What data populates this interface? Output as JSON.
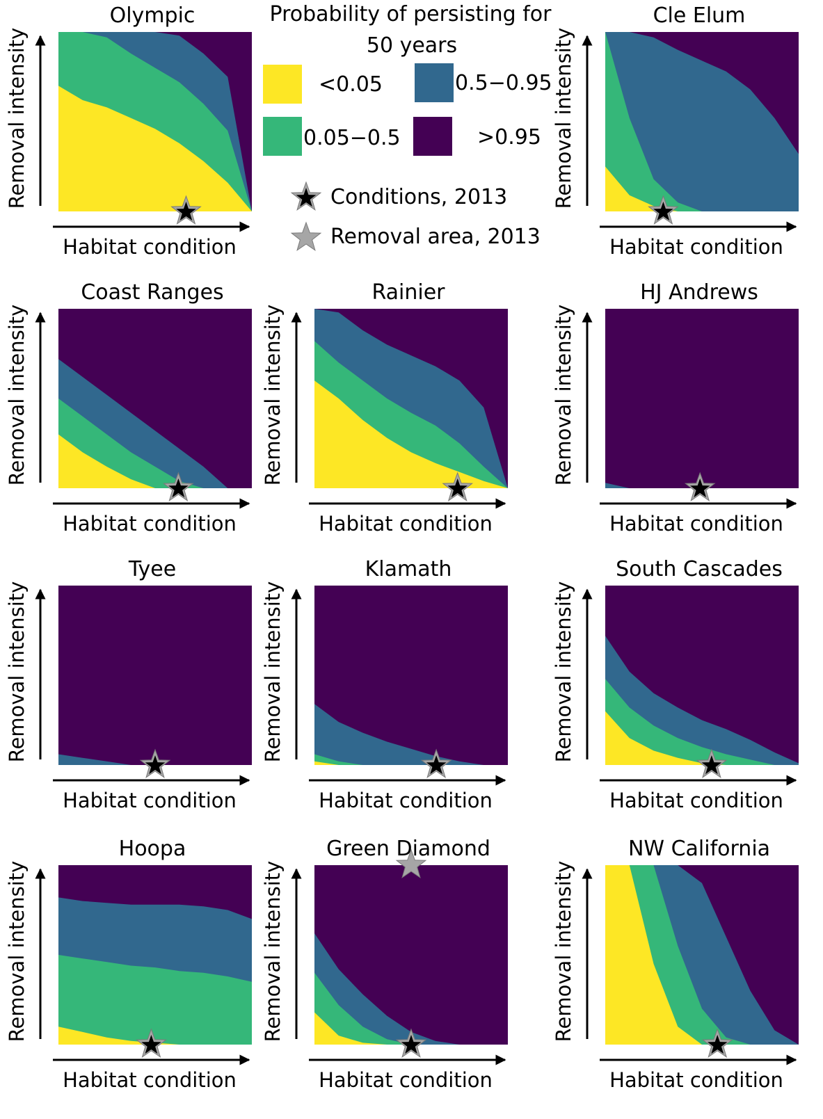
{
  "figure": {
    "legend": {
      "title": "Probability of persisting for 50 years",
      "title_lines": [
        "Probability of persisting for",
        "50 years"
      ],
      "entries": [
        {
          "label": "<0.05",
          "color": "#fde725"
        },
        {
          "label": "0.5−0.95",
          "color": "#31688e"
        },
        {
          "label": "0.05−0.5",
          "color": "#35b779"
        },
        {
          "label": ">0.95",
          "color": "#440154"
        }
      ],
      "markers": [
        {
          "label": "Conditions, 2013",
          "symbol": "star-black"
        },
        {
          "label": "Removal area, 2013",
          "symbol": "star-gray"
        }
      ]
    }
  },
  "chart_data": [
    {
      "type": "heatmap",
      "title": "Olympic",
      "xlabel": "Habitat condition",
      "ylabel": "Removal intensity",
      "bands": {
        "yellow_green": [
          0.7,
          0.62,
          0.58,
          0.52,
          0.46,
          0.38,
          0.28,
          0.16,
          0.0
        ],
        "green_blue": [
          1.0,
          1.0,
          0.97,
          0.88,
          0.8,
          0.72,
          0.6,
          0.45,
          0.0
        ],
        "blue_purple": [
          1.0,
          1.0,
          1.0,
          1.0,
          1.0,
          0.98,
          0.88,
          0.75,
          0.0
        ]
      },
      "stars": [
        {
          "kind": "conditions",
          "x": 0.66,
          "y": 0.0
        }
      ]
    },
    {
      "type": "heatmap",
      "title": "Cle Elum",
      "xlabel": "Habitat condition",
      "ylabel": "Removal intensity",
      "bands": {
        "yellow_green": [
          0.25,
          0.09,
          0.03,
          0.0,
          0.0,
          0.0,
          0.0,
          0.0,
          0.0
        ],
        "green_blue": [
          1.0,
          0.52,
          0.18,
          0.05,
          0.0,
          0.0,
          0.0,
          0.0,
          0.0
        ],
        "blue_purple": [
          1.0,
          1.0,
          0.97,
          0.9,
          0.84,
          0.78,
          0.68,
          0.52,
          0.32
        ]
      },
      "stars": [
        {
          "kind": "conditions",
          "x": 0.3,
          "y": 0.0
        }
      ]
    },
    {
      "type": "heatmap",
      "title": "Coast Ranges",
      "xlabel": "Habitat condition",
      "ylabel": "Removal intensity",
      "bands": {
        "yellow_green": [
          0.3,
          0.2,
          0.12,
          0.05,
          0.0,
          0.0,
          0.0,
          0.0,
          0.0
        ],
        "green_blue": [
          0.5,
          0.4,
          0.3,
          0.2,
          0.12,
          0.04,
          0.0,
          0.0,
          0.0
        ],
        "blue_purple": [
          0.72,
          0.62,
          0.52,
          0.42,
          0.32,
          0.22,
          0.12,
          0.0,
          0.0
        ]
      },
      "stars": [
        {
          "kind": "conditions",
          "x": 0.62,
          "y": 0.0
        }
      ]
    },
    {
      "type": "heatmap",
      "title": "Rainier",
      "xlabel": "Habitat condition",
      "ylabel": "Removal intensity",
      "bands": {
        "yellow_green": [
          0.6,
          0.5,
          0.38,
          0.28,
          0.2,
          0.14,
          0.09,
          0.04,
          0.0
        ],
        "green_blue": [
          0.82,
          0.7,
          0.6,
          0.5,
          0.42,
          0.35,
          0.25,
          0.12,
          0.0
        ],
        "blue_purple": [
          1.0,
          0.98,
          0.88,
          0.8,
          0.74,
          0.68,
          0.6,
          0.45,
          0.0
        ]
      },
      "stars": [
        {
          "kind": "conditions",
          "x": 0.74,
          "y": 0.0
        }
      ]
    },
    {
      "type": "heatmap",
      "title": "HJ Andrews",
      "xlabel": "Habitat condition",
      "ylabel": "Removal intensity",
      "bands": {
        "yellow_green": [
          0,
          0,
          0,
          0,
          0,
          0,
          0,
          0,
          0
        ],
        "green_blue": [
          0,
          0,
          0,
          0,
          0,
          0,
          0,
          0,
          0
        ],
        "blue_purple": [
          0.03,
          0,
          0,
          0,
          0,
          0,
          0,
          0,
          0
        ]
      },
      "stars": [
        {
          "kind": "conditions",
          "x": 0.49,
          "y": 0.0
        }
      ]
    },
    {
      "type": "heatmap",
      "title": "Tyee",
      "xlabel": "Habitat condition",
      "ylabel": "Removal intensity",
      "bands": {
        "yellow_green": [
          0,
          0,
          0,
          0,
          0,
          0,
          0,
          0,
          0
        ],
        "green_blue": [
          0,
          0,
          0,
          0,
          0,
          0,
          0,
          0,
          0
        ],
        "blue_purple": [
          0.06,
          0.04,
          0.02,
          0,
          0,
          0,
          0,
          0,
          0
        ]
      },
      "stars": [
        {
          "kind": "conditions",
          "x": 0.5,
          "y": 0.0
        }
      ]
    },
    {
      "type": "heatmap",
      "title": "Klamath",
      "xlabel": "Habitat condition",
      "ylabel": "Removal intensity",
      "bands": {
        "yellow_green": [
          0.02,
          0,
          0,
          0,
          0,
          0,
          0,
          0,
          0
        ],
        "green_blue": [
          0.06,
          0.02,
          0,
          0,
          0,
          0,
          0,
          0,
          0
        ],
        "blue_purple": [
          0.34,
          0.24,
          0.18,
          0.13,
          0.09,
          0.05,
          0.02,
          0,
          0
        ]
      },
      "stars": [
        {
          "kind": "conditions",
          "x": 0.63,
          "y": 0.0
        }
      ]
    },
    {
      "type": "heatmap",
      "title": "South Cascades",
      "xlabel": "Habitat condition",
      "ylabel": "Removal intensity",
      "bands": {
        "yellow_green": [
          0.3,
          0.15,
          0.08,
          0.04,
          0.01,
          0,
          0,
          0,
          0
        ],
        "green_blue": [
          0.48,
          0.32,
          0.22,
          0.15,
          0.1,
          0.06,
          0.03,
          0,
          0
        ],
        "blue_purple": [
          0.72,
          0.52,
          0.4,
          0.32,
          0.25,
          0.2,
          0.14,
          0.07,
          0.01
        ]
      },
      "stars": [
        {
          "kind": "conditions",
          "x": 0.55,
          "y": 0.0
        }
      ]
    },
    {
      "type": "heatmap",
      "title": "Hoopa",
      "xlabel": "Habitat condition",
      "ylabel": "Removal intensity",
      "bands": {
        "yellow_green": [
          0.1,
          0.07,
          0.04,
          0.02,
          0.01,
          0,
          0,
          0,
          0
        ],
        "green_blue": [
          0.5,
          0.48,
          0.46,
          0.44,
          0.43,
          0.41,
          0.4,
          0.38,
          0.35
        ],
        "blue_purple": [
          0.82,
          0.8,
          0.79,
          0.78,
          0.78,
          0.78,
          0.77,
          0.75,
          0.7
        ]
      },
      "stars": [
        {
          "kind": "conditions",
          "x": 0.48,
          "y": 0.0
        }
      ]
    },
    {
      "type": "heatmap",
      "title": "Green Diamond",
      "xlabel": "Habitat condition",
      "ylabel": "Removal intensity",
      "bands": {
        "yellow_green": [
          0.18,
          0.05,
          0.01,
          0,
          0,
          0,
          0,
          0,
          0
        ],
        "green_blue": [
          0.4,
          0.22,
          0.1,
          0.03,
          0,
          0,
          0,
          0,
          0
        ],
        "blue_purple": [
          0.62,
          0.42,
          0.28,
          0.16,
          0.07,
          0.02,
          0,
          0,
          0
        ]
      },
      "stars": [
        {
          "kind": "conditions",
          "x": 0.5,
          "y": 0.0
        },
        {
          "kind": "removal",
          "x": 0.5,
          "y": 1.0
        }
      ]
    },
    {
      "type": "heatmap",
      "title": "NW California",
      "xlabel": "Habitat condition",
      "ylabel": "Removal intensity",
      "bands": {
        "yellow_green": [
          1.0,
          1.0,
          0.45,
          0.1,
          0.0,
          0,
          0,
          0,
          0
        ],
        "green_blue": [
          1.0,
          1.0,
          1.0,
          0.55,
          0.2,
          0.04,
          0,
          0,
          0
        ],
        "blue_purple": [
          1.0,
          1.0,
          1.0,
          1.0,
          0.9,
          0.6,
          0.3,
          0.08,
          0
        ]
      },
      "stars": [
        {
          "kind": "conditions",
          "x": 0.58,
          "y": 0.0
        }
      ]
    }
  ]
}
